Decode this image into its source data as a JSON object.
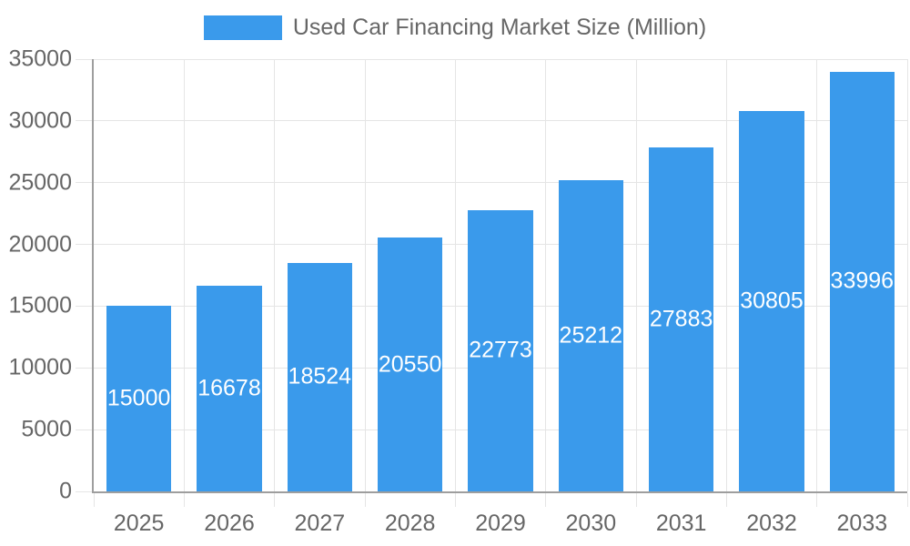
{
  "chart_data": {
    "type": "bar",
    "title": "Used Car Financing Market Size (Million)",
    "categories": [
      "2025",
      "2026",
      "2027",
      "2028",
      "2029",
      "2030",
      "2031",
      "2032",
      "2033"
    ],
    "values": [
      15000,
      16678,
      18524,
      20550,
      22773,
      25212,
      27883,
      30805,
      33996
    ],
    "xlabel": "",
    "ylabel": "",
    "ylim": [
      0,
      35000
    ],
    "yticks": [
      0,
      5000,
      10000,
      15000,
      20000,
      25000,
      30000,
      35000
    ],
    "grid": true,
    "legend_position": "top-center",
    "value_labels": "inside-center",
    "bar_width_fraction": 0.715,
    "colors": {
      "bar": "#3A9AEB",
      "axis_text": "#666666",
      "gridline": "#E5E5E5",
      "axis_line": "#9E9E9E",
      "value_label": "#FFFFFF",
      "background": "#FFFFFF"
    }
  }
}
